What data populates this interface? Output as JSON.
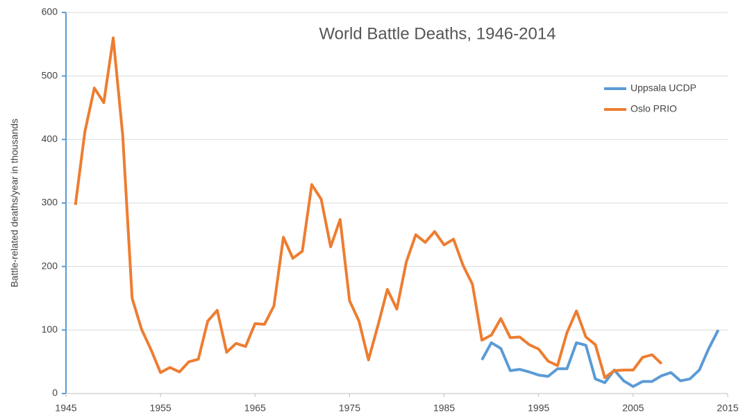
{
  "chart_data": {
    "type": "line",
    "title": "World Battle Deaths, 1946-2014",
    "y_label": "Battle-related deaths/year in thousands",
    "xlim": [
      1945,
      2015
    ],
    "xticks": [
      1945,
      1955,
      1965,
      1975,
      1985,
      1995,
      2005,
      2015
    ],
    "ylim": [
      0,
      600
    ],
    "yticks": [
      0,
      100,
      200,
      300,
      400,
      500,
      600
    ],
    "grid": true,
    "legend": "upper right",
    "series": [
      {
        "name": "Uppsala UCDP",
        "color": "#5b9bd5",
        "x": [
          1989,
          1990,
          1991,
          1992,
          1993,
          1994,
          1995,
          1996,
          1997,
          1998,
          1999,
          2000,
          2001,
          2002,
          2003,
          2004,
          2005,
          2006,
          2007,
          2008,
          2009,
          2010,
          2011,
          2012,
          2013,
          2014
        ],
        "values": [
          53,
          80,
          71,
          36,
          38,
          34,
          29,
          27,
          39,
          39,
          80,
          76,
          23,
          17,
          37,
          20,
          11,
          19,
          19,
          28,
          33,
          20,
          23,
          37,
          71,
          100
        ]
      },
      {
        "name": "Oslo PRIO",
        "color": "#ed7d31",
        "x": [
          1946,
          1947,
          1948,
          1949,
          1950,
          1951,
          1952,
          1953,
          1954,
          1955,
          1956,
          1957,
          1958,
          1959,
          1960,
          1961,
          1962,
          1963,
          1964,
          1965,
          1966,
          1967,
          1968,
          1969,
          1970,
          1971,
          1972,
          1973,
          1974,
          1975,
          1976,
          1977,
          1978,
          1979,
          1980,
          1981,
          1982,
          1983,
          1984,
          1985,
          1986,
          1987,
          1988,
          1989,
          1990,
          1991,
          1992,
          1993,
          1994,
          1995,
          1996,
          1997,
          1998,
          1999,
          2000,
          2001,
          2002,
          2003,
          2004,
          2005,
          2006,
          2007,
          2008
        ],
        "values": [
          297,
          412,
          481,
          458,
          560,
          407,
          150,
          101,
          69,
          33,
          41,
          34,
          50,
          54,
          114,
          131,
          65,
          79,
          74,
          110,
          109,
          138,
          246,
          213,
          224,
          329,
          306,
          231,
          274,
          146,
          114,
          53,
          107,
          164,
          133,
          207,
          250,
          238,
          255,
          234,
          243,
          202,
          172,
          84,
          92,
          118,
          88,
          89,
          77,
          70,
          51,
          44,
          96,
          130,
          89,
          77,
          25,
          36,
          37,
          37,
          57,
          61,
          47
        ]
      }
    ]
  }
}
